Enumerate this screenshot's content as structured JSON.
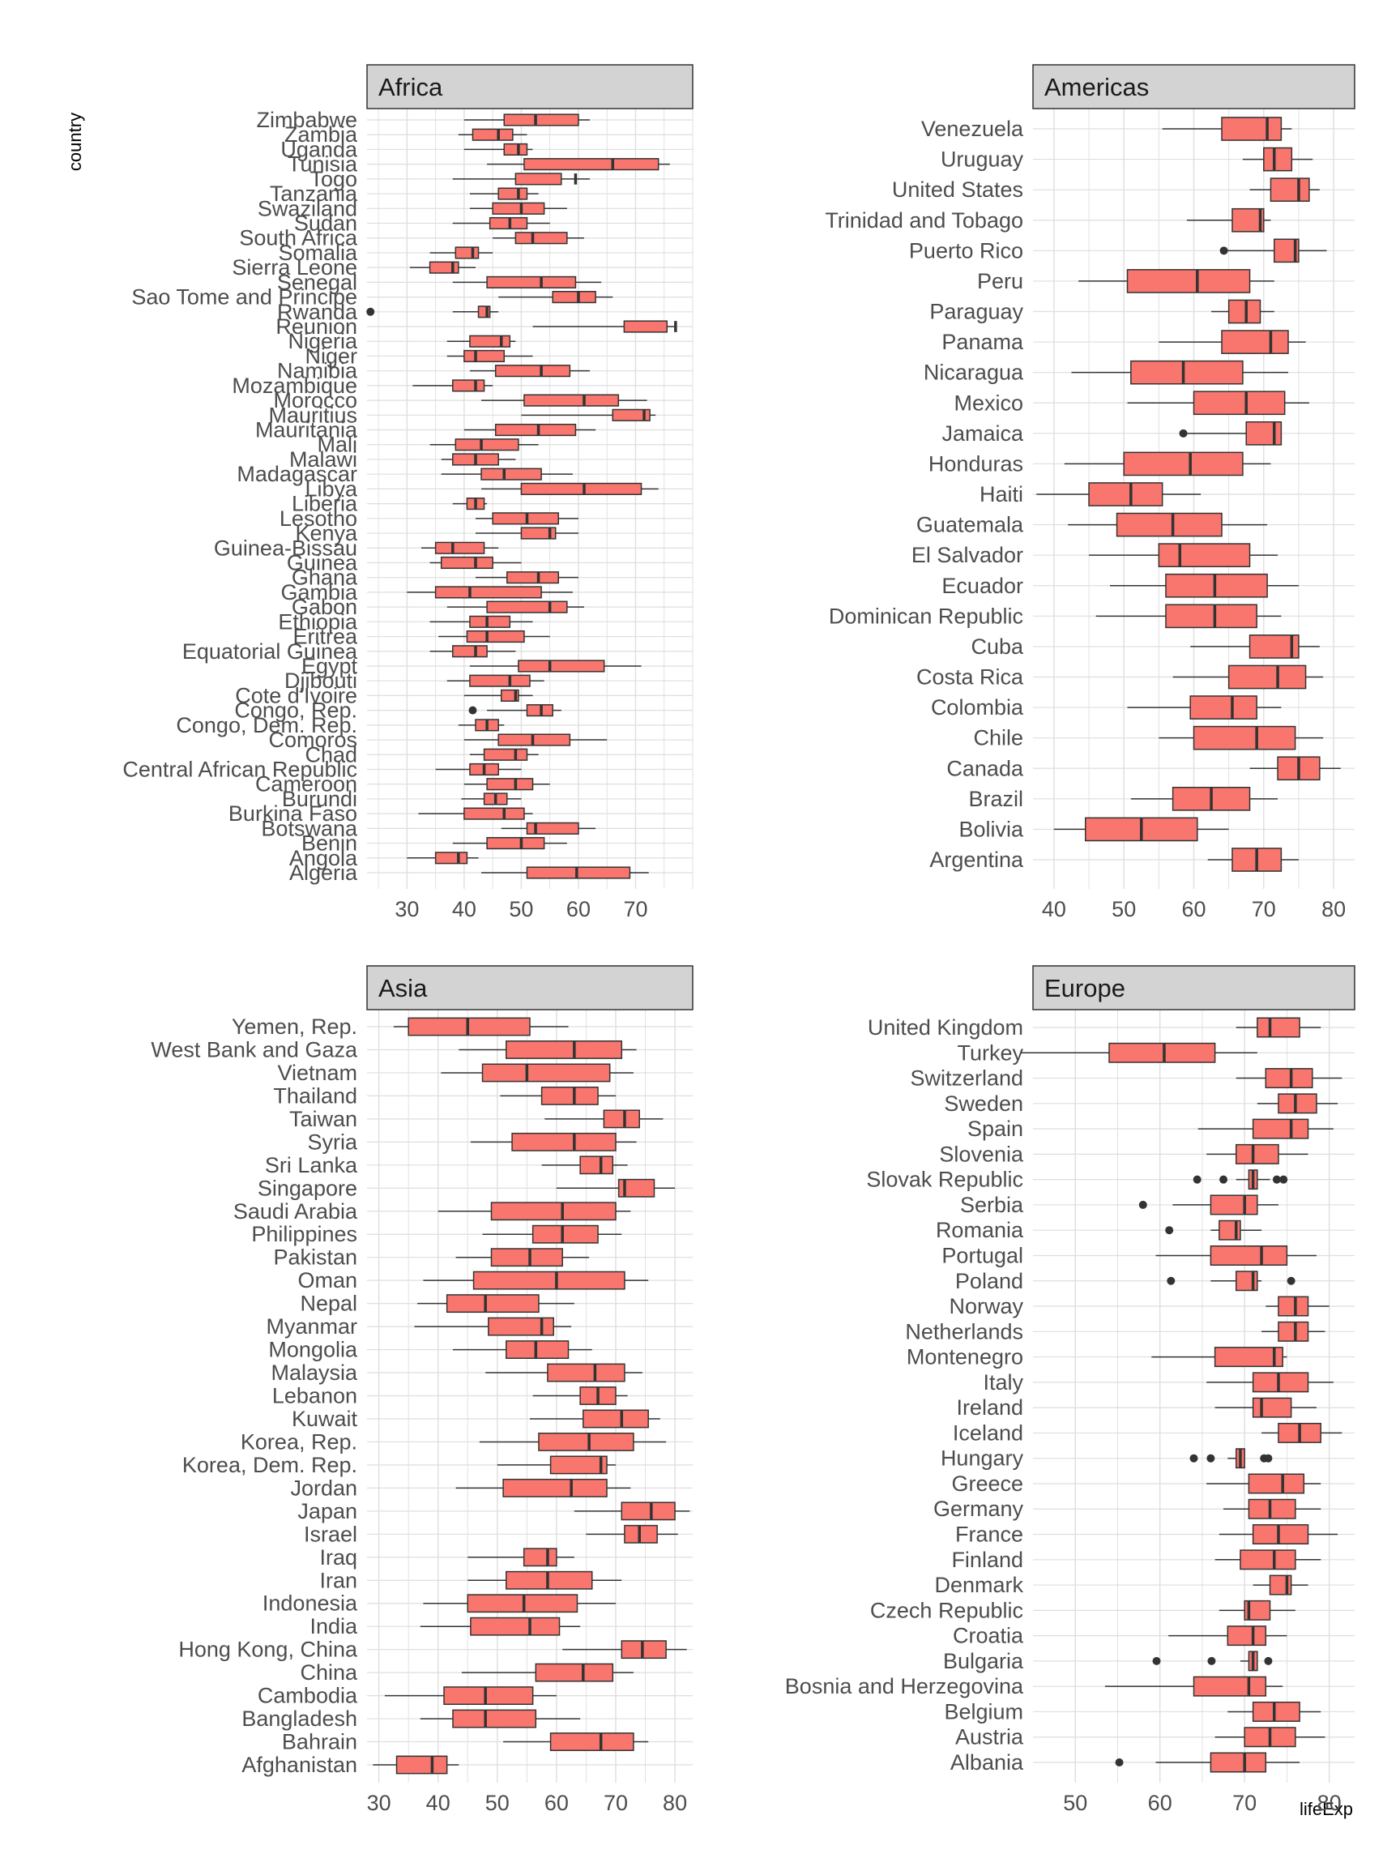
{
  "axis_titles": {
    "y": "country",
    "x": "lifeExp"
  },
  "colors": {
    "fill": "#F8766D",
    "line": "#333333",
    "grid": "#dedede",
    "strip": "#d3d3d3",
    "outlier": "#333333"
  },
  "chart_data": [
    {
      "type": "boxplot",
      "panel": "Africa",
      "xlim": [
        23,
        80
      ],
      "xticks": [
        30,
        40,
        50,
        60,
        70
      ],
      "categories": [
        "Algeria",
        "Angola",
        "Benin",
        "Botswana",
        "Burkina Faso",
        "Burundi",
        "Cameroon",
        "Central African Republic",
        "Chad",
        "Comoros",
        "Congo, Dem. Rep.",
        "Congo, Rep.",
        "Cote d'Ivoire",
        "Djibouti",
        "Egypt",
        "Equatorial Guinea",
        "Eritrea",
        "Ethiopia",
        "Gabon",
        "Gambia",
        "Ghana",
        "Guinea",
        "Guinea-Bissau",
        "Kenya",
        "Lesotho",
        "Liberia",
        "Libya",
        "Madagascar",
        "Malawi",
        "Mali",
        "Mauritania",
        "Mauritius",
        "Morocco",
        "Mozambique",
        "Namibia",
        "Niger",
        "Nigeria",
        "Reunion",
        "Rwanda",
        "Sao Tome and Principe",
        "Senegal",
        "Sierra Leone",
        "Somalia",
        "South Africa",
        "Sudan",
        "Swaziland",
        "Tanzania",
        "Togo",
        "Tunisia",
        "Uganda",
        "Zambia",
        "Zimbabwe"
      ],
      "boxes": [
        [
          43,
          51,
          59.7,
          69,
          72.3
        ],
        [
          30,
          35,
          39,
          40.5,
          42.5
        ],
        [
          38,
          44,
          50,
          54,
          58
        ],
        [
          46.5,
          51,
          52.5,
          60,
          63
        ],
        [
          32,
          40,
          47,
          50.5,
          52
        ],
        [
          39.5,
          43.5,
          45.5,
          47.5,
          50
        ],
        [
          40,
          44,
          49,
          52,
          55
        ],
        [
          35,
          41,
          43.5,
          46,
          50
        ],
        [
          41,
          43.5,
          49,
          51,
          53
        ],
        [
          40,
          46,
          52,
          58.5,
          65
        ],
        [
          39,
          42,
          44,
          46,
          47
        ],
        [
          44,
          51,
          53.5,
          55.5,
          57
        ],
        [
          40,
          46.5,
          49,
          49.5,
          52
        ],
        [
          37,
          41,
          48,
          51.5,
          54
        ],
        [
          41,
          49.5,
          55,
          64.5,
          71
        ],
        [
          34,
          38,
          42,
          44,
          49
        ],
        [
          35.5,
          40.5,
          44,
          50.5,
          55
        ],
        [
          34,
          41,
          44,
          48,
          52
        ],
        [
          37,
          44,
          55,
          58,
          61
        ],
        [
          30,
          35,
          41,
          53.5,
          59
        ],
        [
          42,
          47.5,
          53,
          56.5,
          60
        ],
        [
          34,
          36,
          42,
          45,
          50
        ],
        [
          32.5,
          35,
          38,
          43.5,
          46
        ],
        [
          42,
          50,
          55,
          56,
          60
        ],
        [
          42,
          45,
          51,
          56.5,
          60
        ],
        [
          38,
          40.5,
          42,
          43.5,
          44
        ],
        [
          43,
          50,
          61,
          71,
          74
        ],
        [
          36,
          43,
          47,
          53.5,
          59
        ],
        [
          36,
          38,
          42,
          46,
          49
        ],
        [
          34,
          38.5,
          43,
          49.5,
          53
        ],
        [
          40,
          45.5,
          53,
          59.5,
          63
        ],
        [
          50,
          66,
          71.5,
          72.5,
          73.5
        ],
        [
          43,
          50.5,
          61,
          67,
          72
        ],
        [
          31,
          38,
          42,
          43.5,
          45
        ],
        [
          41,
          45.5,
          53.5,
          58.5,
          62
        ],
        [
          37,
          40,
          42,
          47,
          52
        ],
        [
          37,
          41,
          46.5,
          48,
          49
        ],
        [
          52,
          68,
          77,
          75.5,
          77
        ],
        [
          38,
          42.5,
          44,
          44.5,
          46
        ],
        [
          46,
          55.5,
          60,
          63,
          66
        ],
        [
          38,
          44,
          53.5,
          59.5,
          64
        ],
        [
          30.5,
          34,
          38,
          39,
          42
        ],
        [
          34,
          38.5,
          41.5,
          42.5,
          45
        ],
        [
          45,
          49,
          52,
          58,
          61
        ],
        [
          38,
          44.5,
          48,
          51,
          55
        ],
        [
          41,
          45,
          50,
          54,
          58
        ],
        [
          41,
          46,
          49.5,
          51,
          53
        ],
        [
          38,
          49,
          59.5,
          57,
          62
        ],
        [
          44,
          50.5,
          66,
          74,
          76
        ],
        [
          40,
          47,
          49.5,
          51,
          52
        ],
        [
          39,
          41.5,
          46,
          48.5,
          51
        ],
        [
          40,
          47,
          52.5,
          60,
          62
        ]
      ],
      "outliers": [
        [
          "Congo, Rep.",
          41.5
        ],
        [
          "Rwanda",
          23.6
        ]
      ]
    },
    {
      "type": "boxplot",
      "panel": "Americas",
      "xlim": [
        37,
        83
      ],
      "xticks": [
        40,
        50,
        60,
        70,
        80
      ],
      "categories": [
        "Argentina",
        "Bolivia",
        "Brazil",
        "Canada",
        "Chile",
        "Colombia",
        "Costa Rica",
        "Cuba",
        "Dominican Republic",
        "Ecuador",
        "El Salvador",
        "Guatemala",
        "Haiti",
        "Honduras",
        "Jamaica",
        "Mexico",
        "Nicaragua",
        "Panama",
        "Paraguay",
        "Peru",
        "Puerto Rico",
        "Trinidad and Tobago",
        "United States",
        "Uruguay",
        "Venezuela"
      ],
      "boxes": [
        [
          62,
          65.5,
          69,
          72.5,
          75
        ],
        [
          40,
          44.5,
          52.5,
          60.5,
          65
        ],
        [
          51,
          57,
          62.5,
          68,
          72
        ],
        [
          68,
          72,
          75,
          78,
          81
        ],
        [
          55,
          60,
          69,
          74.5,
          78.5
        ],
        [
          50.5,
          59.5,
          65.5,
          69,
          72.5
        ],
        [
          57,
          65,
          72,
          76,
          78.5
        ],
        [
          59.5,
          68,
          74,
          75,
          78
        ],
        [
          46,
          56,
          63,
          69,
          72.5
        ],
        [
          48,
          56,
          63,
          70.5,
          75
        ],
        [
          45,
          55,
          58,
          68,
          72
        ],
        [
          42,
          49,
          57,
          64,
          70.5
        ],
        [
          37.5,
          45,
          51,
          55.5,
          61
        ],
        [
          41.5,
          50,
          59.5,
          67,
          71
        ],
        [
          58.5,
          67.5,
          71.5,
          72.5,
          72.5
        ],
        [
          50.5,
          60,
          67.5,
          73,
          76.5
        ],
        [
          42.5,
          51,
          58.5,
          67,
          73.5
        ],
        [
          55,
          64,
          71,
          73.5,
          76
        ],
        [
          62.5,
          65,
          67.5,
          69.5,
          71.5
        ],
        [
          43.5,
          50.5,
          60.5,
          68,
          71.5
        ],
        [
          64,
          71.5,
          74.5,
          75,
          79
        ],
        [
          59,
          65.5,
          69.5,
          70,
          71
        ],
        [
          68,
          71,
          75,
          76.5,
          78
        ],
        [
          67,
          70,
          71.5,
          74,
          77
        ],
        [
          55.5,
          64,
          70.5,
          72.5,
          74
        ]
      ],
      "outliers": [
        [
          "Jamaica",
          58.5
        ],
        [
          "Puerto Rico",
          64.3
        ]
      ]
    },
    {
      "type": "boxplot",
      "panel": "Asia",
      "xlim": [
        28,
        83
      ],
      "xticks": [
        30,
        40,
        50,
        60,
        70,
        80
      ],
      "categories": [
        "Afghanistan",
        "Bahrain",
        "Bangladesh",
        "Cambodia",
        "China",
        "Hong Kong, China",
        "India",
        "Indonesia",
        "Iran",
        "Iraq",
        "Israel",
        "Japan",
        "Jordan",
        "Korea, Dem. Rep.",
        "Korea, Rep.",
        "Kuwait",
        "Lebanon",
        "Malaysia",
        "Mongolia",
        "Myanmar",
        "Nepal",
        "Oman",
        "Pakistan",
        "Philippines",
        "Saudi Arabia",
        "Singapore",
        "Sri Lanka",
        "Syria",
        "Taiwan",
        "Thailand",
        "Vietnam",
        "West Bank and Gaza",
        "Yemen, Rep."
      ],
      "boxes": [
        [
          29,
          33,
          39,
          41.5,
          43.5
        ],
        [
          51,
          59,
          67.5,
          73,
          75.5
        ],
        [
          37,
          42.5,
          48,
          56.5,
          64
        ],
        [
          31,
          41,
          48,
          56,
          60
        ],
        [
          44,
          56.5,
          64.5,
          69.5,
          73
        ],
        [
          61,
          71,
          74.5,
          78.5,
          82
        ],
        [
          37,
          45.5,
          55.5,
          60.5,
          64
        ],
        [
          37.5,
          45,
          54.5,
          63.5,
          70
        ],
        [
          45,
          51.5,
          58.5,
          66,
          71
        ],
        [
          45,
          54.5,
          58.5,
          60,
          63
        ],
        [
          65,
          71.5,
          74,
          77,
          80.5
        ],
        [
          63,
          71,
          76,
          80,
          82.5
        ],
        [
          43,
          51,
          62.5,
          68.5,
          72.5
        ],
        [
          50,
          59,
          67.5,
          68.5,
          70
        ],
        [
          47,
          57,
          65.5,
          73,
          78.5
        ],
        [
          55.5,
          64.5,
          71,
          75.5,
          77.5
        ],
        [
          56,
          64,
          67,
          70,
          72
        ],
        [
          48,
          58.5,
          66.5,
          71.5,
          74.5
        ],
        [
          42.5,
          51.5,
          56.5,
          62,
          66
        ],
        [
          36,
          48.5,
          57.5,
          59.5,
          62.5
        ],
        [
          36.5,
          41.5,
          48,
          57,
          63
        ],
        [
          37.5,
          46,
          60,
          71.5,
          75.5
        ],
        [
          43,
          49,
          55.5,
          61,
          65.5
        ],
        [
          47.5,
          56,
          61,
          67,
          71
        ],
        [
          40,
          49,
          61,
          70,
          72.5
        ],
        [
          60,
          70.5,
          71.5,
          76.5,
          80
        ],
        [
          57.5,
          64,
          67.5,
          69.5,
          72
        ],
        [
          45.5,
          52.5,
          63,
          70,
          73.5
        ],
        [
          58,
          68,
          71.5,
          74,
          78
        ],
        [
          50.5,
          57.5,
          63,
          67,
          70
        ],
        [
          40.5,
          47.5,
          55,
          69,
          73
        ],
        [
          43.5,
          51.5,
          63,
          71,
          73.5
        ],
        [
          32.5,
          35,
          45,
          55.5,
          62
        ]
      ],
      "outliers": []
    },
    {
      "type": "boxplot",
      "panel": "Europe",
      "xlim": [
        45,
        83
      ],
      "xticks": [
        50,
        60,
        70,
        80
      ],
      "categories": [
        "Albania",
        "Austria",
        "Belgium",
        "Bosnia and Herzegovina",
        "Bulgaria",
        "Croatia",
        "Czech Republic",
        "Denmark",
        "Finland",
        "France",
        "Germany",
        "Greece",
        "Hungary",
        "Iceland",
        "Ireland",
        "Italy",
        "Montenegro",
        "Netherlands",
        "Norway",
        "Poland",
        "Portugal",
        "Romania",
        "Serbia",
        "Slovak Republic",
        "Slovenia",
        "Spain",
        "Sweden",
        "Switzerland",
        "Turkey",
        "United Kingdom"
      ],
      "boxes": [
        [
          59.5,
          66,
          70,
          72.5,
          76.5
        ],
        [
          66.5,
          70,
          73,
          76,
          79.5
        ],
        [
          68,
          71,
          73.5,
          76.5,
          79
        ],
        [
          53.5,
          64,
          70.5,
          72.5,
          74.5
        ],
        [
          69.5,
          70.5,
          71,
          71.5,
          71.5
        ],
        [
          61,
          68,
          71,
          72.5,
          75
        ],
        [
          67,
          70,
          70.5,
          73,
          76
        ],
        [
          71,
          73,
          75,
          75.5,
          77.5
        ],
        [
          66.5,
          69.5,
          73.5,
          76,
          79
        ],
        [
          67,
          71,
          74,
          77.5,
          81
        ],
        [
          67.5,
          70.5,
          73,
          76,
          79
        ],
        [
          65.5,
          70.5,
          74.5,
          77,
          79
        ],
        [
          68,
          69,
          69.5,
          70,
          70
        ],
        [
          72,
          74,
          76.5,
          79,
          81.5
        ],
        [
          66.5,
          71,
          72,
          75.5,
          78.5
        ],
        [
          65.5,
          71,
          74,
          77.5,
          80.5
        ],
        [
          59,
          66.5,
          73.5,
          74.5,
          75
        ],
        [
          72,
          74,
          76,
          77.5,
          79.5
        ],
        [
          72.5,
          74,
          76,
          77.5,
          80
        ],
        [
          66,
          69,
          71,
          71.5,
          72
        ],
        [
          59.5,
          66,
          72,
          75,
          78.5
        ],
        [
          66,
          67,
          69,
          69.5,
          72
        ],
        [
          61.5,
          66,
          70,
          71.5,
          74
        ],
        [
          69,
          70.5,
          71,
          71.5,
          73
        ],
        [
          65.5,
          69,
          71,
          74,
          77.5
        ],
        [
          64.5,
          71,
          75.5,
          77.5,
          80.5
        ],
        [
          71.5,
          74,
          76,
          78.5,
          81
        ],
        [
          69,
          72.5,
          75.5,
          78,
          81.5
        ],
        [
          43.5,
          54,
          60.5,
          66.5,
          71.5
        ],
        [
          69,
          71.5,
          73,
          76.5,
          79
        ]
      ],
      "outliers": [
        [
          "Albania",
          55.2
        ],
        [
          "Bulgaria",
          59.6
        ],
        [
          "Bulgaria",
          66.1
        ],
        [
          "Bulgaria",
          72.8
        ],
        [
          "Hungary",
          64
        ],
        [
          "Hungary",
          66
        ],
        [
          "Hungary",
          72.3
        ],
        [
          "Hungary",
          72.8
        ],
        [
          "Poland",
          61.3
        ],
        [
          "Poland",
          75.5
        ],
        [
          "Romania",
          61.1
        ],
        [
          "Serbia",
          58
        ],
        [
          "Slovak Republic",
          64.4
        ],
        [
          "Slovak Republic",
          67.5
        ],
        [
          "Slovak Republic",
          73.8
        ],
        [
          "Slovak Republic",
          74.6
        ]
      ]
    }
  ]
}
